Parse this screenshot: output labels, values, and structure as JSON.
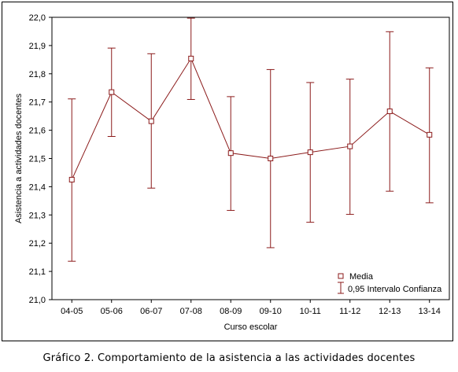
{
  "chart_data": {
    "type": "line",
    "categories": [
      "04-05",
      "05-06",
      "06-07",
      "07-08",
      "08-09",
      "09-10",
      "10-11",
      "11-12",
      "12-13",
      "13-14"
    ],
    "series": [
      {
        "name": "Media",
        "values": [
          21.425,
          21.735,
          21.632,
          21.854,
          21.519,
          21.5,
          21.522,
          21.543,
          21.667,
          21.584
        ],
        "ci_low": [
          21.136,
          21.578,
          21.395,
          21.709,
          21.316,
          21.184,
          21.274,
          21.302,
          21.384,
          21.343
        ],
        "ci_high": [
          21.711,
          21.891,
          21.871,
          21.997,
          21.719,
          21.815,
          21.769,
          21.781,
          21.949,
          21.821
        ]
      }
    ],
    "xlabel": "Curso escolar",
    "ylabel": "Asistencia a actividades docentes",
    "ylim": [
      21.0,
      22.0
    ],
    "yticks": [
      "21,0",
      "21,1",
      "21,2",
      "21,3",
      "21,4",
      "21,5",
      "21,6",
      "21,7",
      "21,8",
      "21,9",
      "22,0"
    ],
    "legend": {
      "position": "bottom-right",
      "entries": [
        "Media",
        "0,95 Intervalo Confianza"
      ]
    },
    "color": "#8b1a1a",
    "grid": false
  },
  "caption": "Gráfico 2. Comportamiento de la asistencia a las actividades docentes"
}
